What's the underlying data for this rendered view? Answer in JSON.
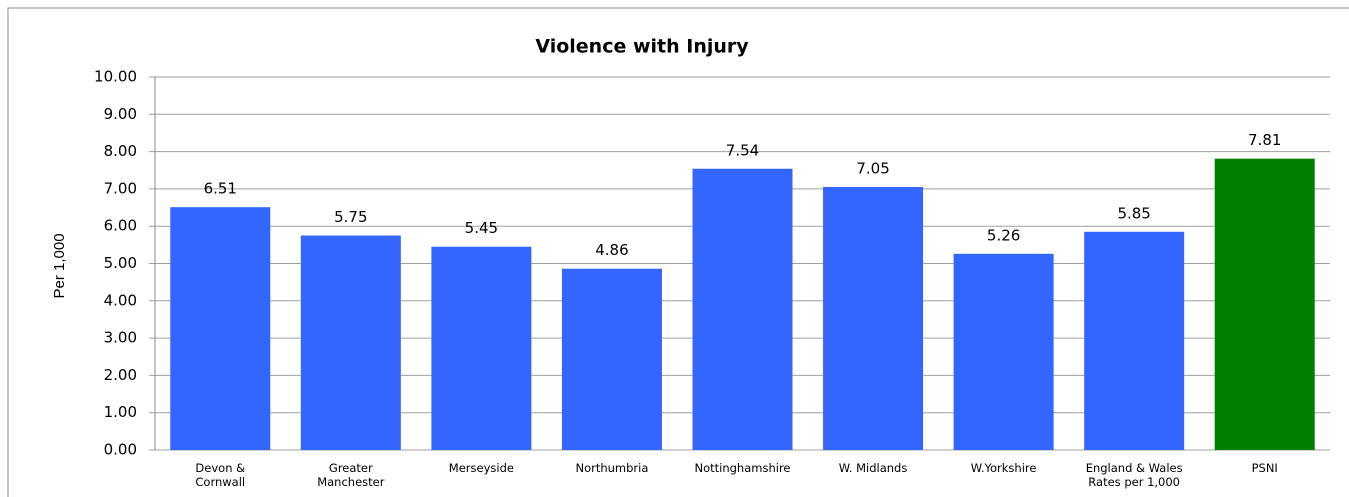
{
  "chart_data": {
    "type": "bar",
    "title": "Violence with Injury",
    "y_label": "Per 1,000",
    "categories": [
      "Devon &\nCornwall",
      "Greater\nManchester",
      "Merseyside",
      "Northumbria",
      "Nottinghamshire",
      "W. Midlands",
      "W.Yorkshire",
      "England & Wales\nRates per 1,000",
      "PSNI"
    ],
    "values": [
      6.51,
      5.75,
      5.45,
      4.86,
      7.54,
      7.05,
      5.26,
      5.85,
      7.81
    ],
    "colors": [
      "#3366ff",
      "#3366ff",
      "#3366ff",
      "#3366ff",
      "#3366ff",
      "#3366ff",
      "#3366ff",
      "#3366ff",
      "#008000"
    ],
    "ylim": [
      0,
      10
    ],
    "yticks": [
      {
        "value": 0,
        "label": "0.00"
      },
      {
        "value": 1,
        "label": "1.00"
      },
      {
        "value": 2,
        "label": "2.00"
      },
      {
        "value": 3,
        "label": "3.00"
      },
      {
        "value": 4,
        "label": "4.00"
      },
      {
        "value": 5,
        "label": "5.00"
      },
      {
        "value": 6,
        "label": "6.00"
      },
      {
        "value": 7,
        "label": "7.00"
      },
      {
        "value": 8,
        "label": "8.00"
      },
      {
        "value": 9,
        "label": "9.00"
      },
      {
        "value": 10,
        "label": "10.00"
      }
    ],
    "grid": true
  }
}
